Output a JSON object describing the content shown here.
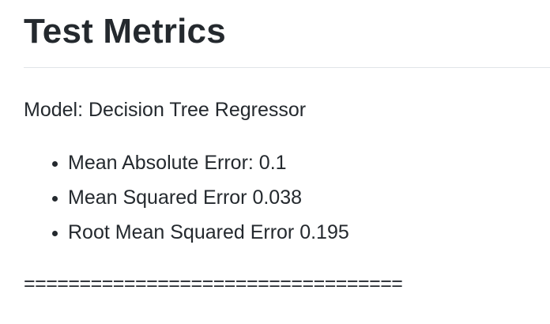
{
  "header": {
    "title": "Test Metrics"
  },
  "content": {
    "model_line": "Model: Decision Tree Regressor",
    "metrics": [
      "Mean Absolute Error: 0.1",
      "Mean Squared Error 0.038",
      "Root Mean Squared Error 0.195"
    ],
    "separator": "=================================="
  },
  "colors": {
    "text": "#24292e",
    "rule": "#e1e4e8",
    "background": "#ffffff"
  }
}
